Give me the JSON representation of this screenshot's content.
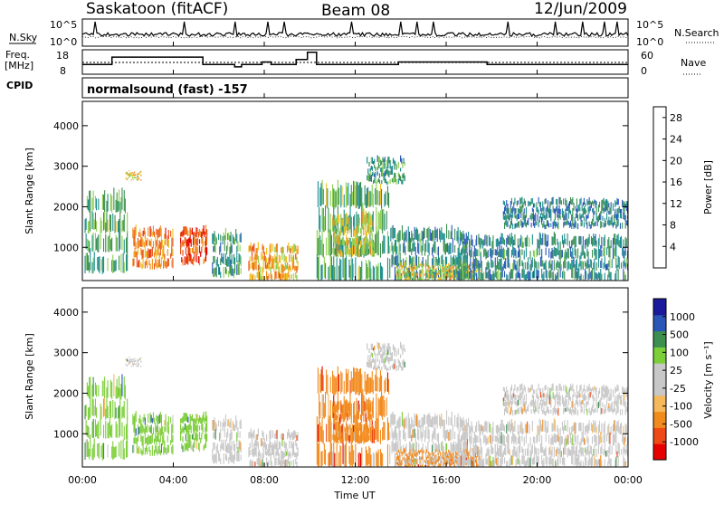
{
  "header": {
    "station": "Saskatoon (fitACF)",
    "beam": "Beam 08",
    "date": "12/Jun/2009",
    "program": "normalsound (fast) -157"
  },
  "side_labels": {
    "nsky": "N.Sky",
    "freq_top": "Freq.",
    "freq_unit": "[MHz]",
    "cpid": "CPID",
    "nsearch": "N.Search",
    "nave": "Nave"
  },
  "colors": {
    "power_scale": [
      "#1a1aff",
      "#2a56b8",
      "#1f8f8f",
      "#3c8f4f",
      "#8ccf52",
      "#f0c020",
      "#f08a1c",
      "#e8501a",
      "#e60000"
    ],
    "velocity_scale": [
      "#e60000",
      "#ef4a16",
      "#f28b1e",
      "#f5b95c",
      "#c8c8c8",
      "#c8c8c8",
      "#7dcf3a",
      "#3c8f4f",
      "#2a56b8",
      "#1a1a9a"
    ]
  },
  "chart_data": [
    {
      "type": "line",
      "name": "noise-panel",
      "left_axis": {
        "label": "N.Sky",
        "ticks": [
          "10^5",
          "10^0"
        ]
      },
      "right_axis": {
        "label": "N.Search",
        "ticks": [
          "10^5",
          "10^0"
        ]
      },
      "x_range_hours": [
        0,
        24
      ]
    },
    {
      "type": "line",
      "name": "frequency-panel",
      "left_axis": {
        "label": "Freq. [MHz]",
        "ticks": [
          "18",
          "8"
        ]
      },
      "right_axis": {
        "label": "Nave",
        "ticks": [
          "60",
          "0"
        ]
      },
      "x_range_hours": [
        0,
        24
      ],
      "freq_series": {
        "x": [
          0,
          1.3,
          1.3,
          5.3,
          5.3,
          6.7,
          6.7,
          7.0,
          7.0,
          7.9,
          7.9,
          8.3,
          8.3,
          9.4,
          9.4,
          9.9,
          9.9,
          10.3,
          10.3,
          13.9,
          13.9,
          17.8,
          17.8,
          24
        ],
        "y": [
          12,
          12,
          15,
          15,
          12,
          12,
          11,
          11,
          12,
          12,
          13,
          13,
          12,
          12,
          14,
          14,
          17,
          17,
          12,
          12,
          13,
          13,
          12,
          12
        ]
      }
    },
    {
      "type": "heatmap",
      "name": "power-panel",
      "ylabel": "Slant Range [km]",
      "ylim": [
        180,
        4600
      ],
      "yticks": [
        1000,
        2000,
        3000,
        4000
      ],
      "colorbar": {
        "label": "Power [dB]",
        "ticks": [
          4,
          8,
          12,
          16,
          20,
          24,
          28
        ],
        "range": [
          0,
          30
        ]
      }
    },
    {
      "type": "heatmap",
      "name": "velocity-panel",
      "ylabel": "Slant Range [km]",
      "ylim": [
        180,
        4600
      ],
      "yticks": [
        1000,
        2000,
        3000,
        4000
      ],
      "colorbar": {
        "label": "Velocity [m s⁻¹]",
        "ticks": [
          "-1000",
          "-500",
          "-100",
          "-25",
          "25",
          "100",
          "500",
          "1000"
        ]
      }
    }
  ],
  "xaxis": {
    "label": "Time UT",
    "ticks": [
      "00:00",
      "04:00",
      "08:00",
      "12:00",
      "16:00",
      "20:00",
      "00:00"
    ],
    "hours": [
      0,
      4,
      8,
      12,
      16,
      20,
      24
    ]
  },
  "echo_regions": [
    {
      "t0": 0.1,
      "t1": 2.0,
      "r0": 400,
      "r1": 2400,
      "p": 12,
      "v": 1
    },
    {
      "t0": 1.9,
      "t1": 2.6,
      "r0": 2700,
      "r1": 2900,
      "p": 18,
      "v": 0
    },
    {
      "t0": 2.2,
      "t1": 4.0,
      "r0": 500,
      "r1": 1500,
      "p": 22,
      "v": 1
    },
    {
      "t0": 4.3,
      "t1": 5.5,
      "r0": 600,
      "r1": 1500,
      "p": 25,
      "v": 1
    },
    {
      "t0": 5.7,
      "t1": 7.0,
      "r0": 300,
      "r1": 1400,
      "p": 10,
      "v": 0
    },
    {
      "t0": 7.3,
      "t1": 9.5,
      "r0": 200,
      "r1": 1100,
      "p": 20,
      "v": 0
    },
    {
      "t0": 10.3,
      "t1": 13.5,
      "r0": 200,
      "r1": 2600,
      "p": 12,
      "v": -1
    },
    {
      "t0": 11.0,
      "t1": 12.8,
      "r0": 800,
      "r1": 1800,
      "p": 17,
      "v": -1
    },
    {
      "t0": 12.5,
      "t1": 14.2,
      "r0": 2600,
      "r1": 3200,
      "p": 10,
      "v": 0
    },
    {
      "t0": 13.5,
      "t1": 17.0,
      "r0": 200,
      "r1": 1500,
      "p": 10,
      "v": 0
    },
    {
      "t0": 13.8,
      "t1": 17.5,
      "r0": 200,
      "r1": 600,
      "p": 18,
      "v": -1
    },
    {
      "t0": 16.5,
      "t1": 24.0,
      "r0": 200,
      "r1": 1300,
      "p": 9,
      "v": 0
    },
    {
      "t0": 18.5,
      "t1": 24.0,
      "r0": 1500,
      "r1": 2200,
      "p": 8,
      "v": 0
    }
  ]
}
